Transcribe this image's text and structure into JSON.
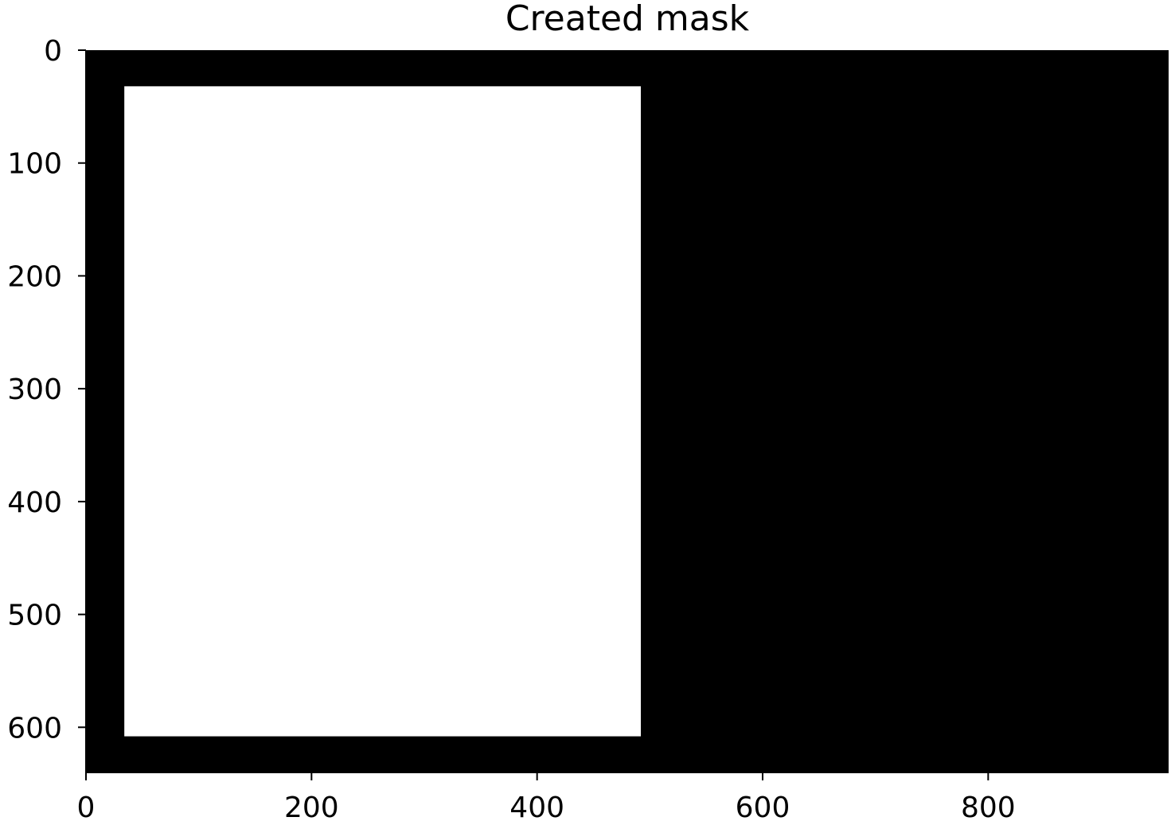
{
  "chart_data": {
    "type": "heatmap",
    "title": "Created mask",
    "xlabel": "",
    "ylabel": "",
    "image_width": 960,
    "image_height": 640,
    "xlim": [
      0,
      960
    ],
    "ylim": [
      640,
      0
    ],
    "y_axis_inverted": true,
    "xticks": [
      0,
      200,
      400,
      600,
      800
    ],
    "yticks": [
      0,
      100,
      200,
      300,
      400,
      500,
      600
    ],
    "background_value": 0,
    "regions": [
      {
        "label": "mask",
        "value": 255,
        "x0": 34,
        "x1": 492,
        "y0": 32,
        "y1": 608
      }
    ],
    "colormap": "gray",
    "colors": {
      "background": "#000000",
      "mask": "#ffffff"
    }
  }
}
